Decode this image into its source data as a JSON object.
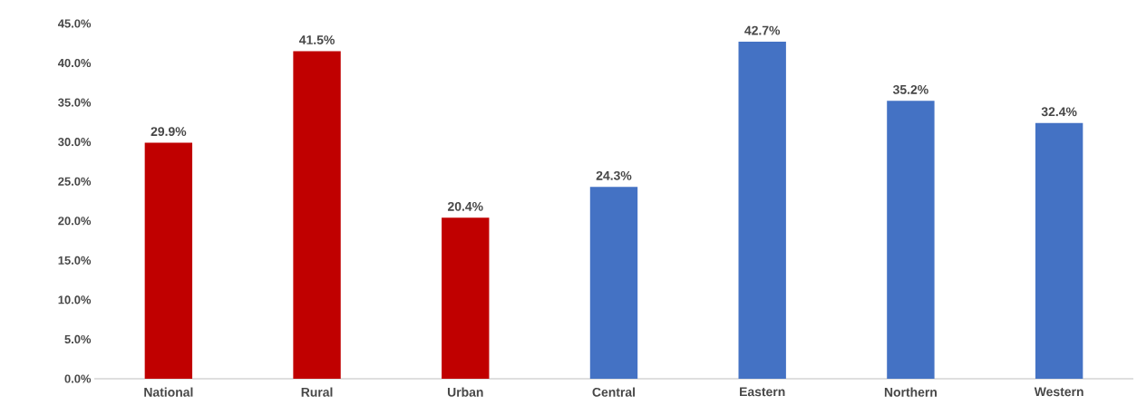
{
  "chart_data": {
    "type": "bar",
    "categories": [
      "National",
      "Rural",
      "Urban",
      "Central",
      "Eastern",
      "Northern",
      "Western"
    ],
    "values": [
      29.9,
      41.5,
      20.4,
      24.3,
      42.7,
      35.2,
      32.4
    ],
    "colors": [
      "#c00000",
      "#c00000",
      "#c00000",
      "#4472c4",
      "#4472c4",
      "#4472c4",
      "#4472c4"
    ],
    "value_labels": [
      "29.9%",
      "41.5%",
      "20.4%",
      "24.3%",
      "42.7%",
      "35.2%",
      "32.4%"
    ],
    "ylim": [
      0,
      45
    ],
    "yticks": [
      {
        "value": 0,
        "label": "0.0%"
      },
      {
        "value": 5,
        "label": "5.0%"
      },
      {
        "value": 10,
        "label": "10.0%"
      },
      {
        "value": 15,
        "label": "15.0%"
      },
      {
        "value": 20,
        "label": "20.0%"
      },
      {
        "value": 25,
        "label": "25.0%"
      },
      {
        "value": 30,
        "label": "30.0%"
      },
      {
        "value": 35,
        "label": "35.0%"
      },
      {
        "value": 40,
        "label": "40.0%"
      },
      {
        "value": 45,
        "label": "45.0%"
      }
    ],
    "grid": false
  }
}
